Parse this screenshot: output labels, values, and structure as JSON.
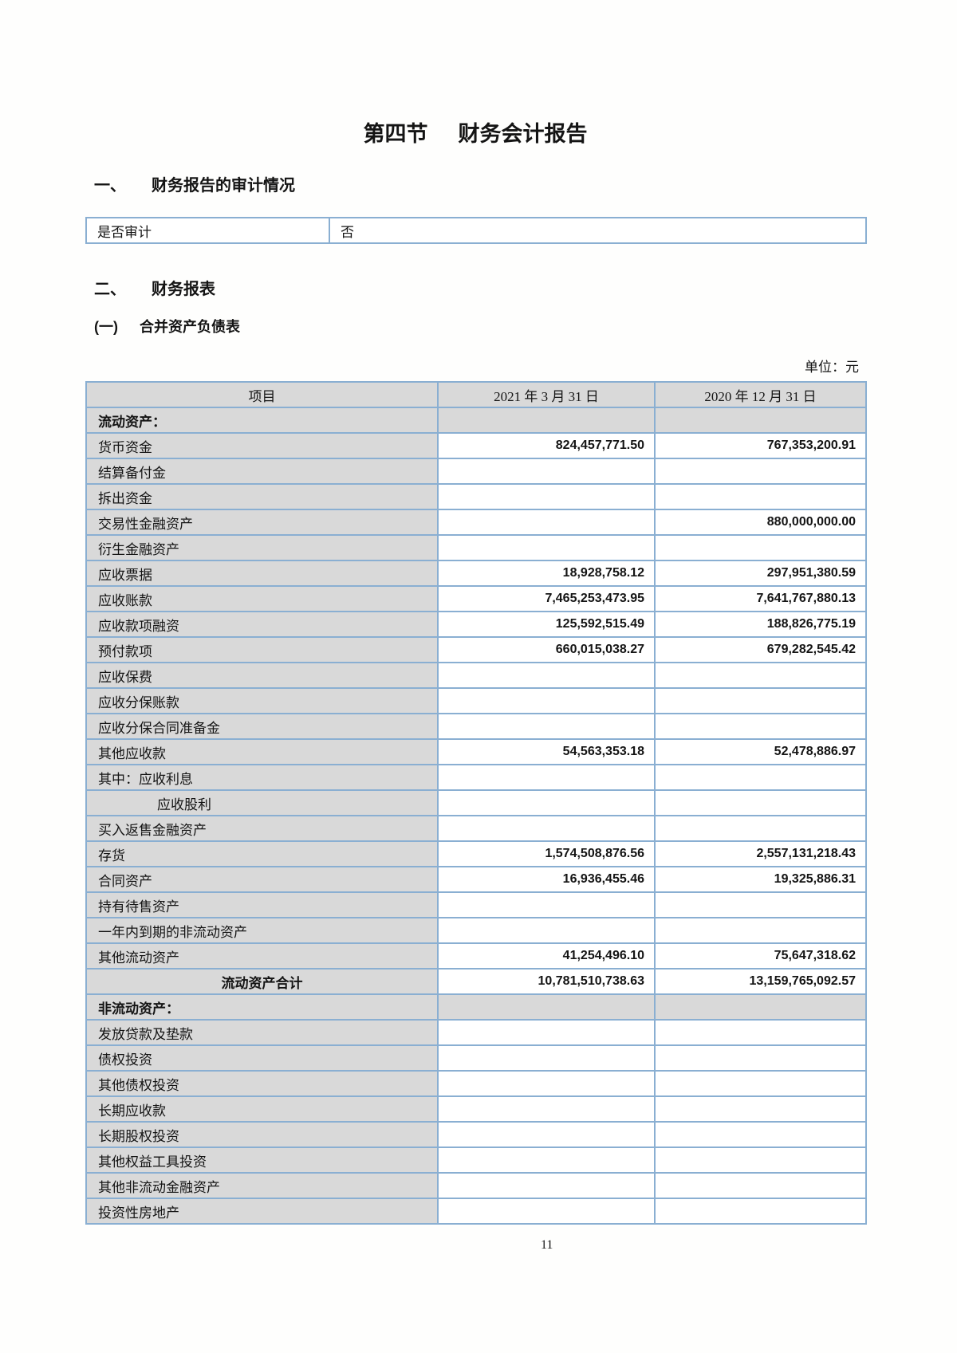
{
  "document": {
    "title": {
      "part1": "第四节",
      "part2": "财务会计报告"
    },
    "page_number": "11"
  },
  "audit_section": {
    "index": "一、",
    "heading": "财务报告的审计情况",
    "question": "是否审计",
    "answer": "否"
  },
  "statements_section": {
    "index": "二、",
    "heading": "财务报表",
    "sub_index": "(一)",
    "subheading": "合并资产负债表",
    "unit_label": "单位：元"
  },
  "balance_sheet": {
    "columns": [
      "项目",
      "2021 年 3 月 31 日",
      "2020 年 12 月 31 日"
    ],
    "rows": [
      {
        "type": "section",
        "label": "流动资产：",
        "v1": "",
        "v2": ""
      },
      {
        "type": "item",
        "label": "货币资金",
        "v1": "824,457,771.50",
        "v2": "767,353,200.91"
      },
      {
        "type": "item",
        "label": "结算备付金",
        "v1": "",
        "v2": ""
      },
      {
        "type": "item",
        "label": "拆出资金",
        "v1": "",
        "v2": ""
      },
      {
        "type": "item",
        "label": "交易性金融资产",
        "v1": "",
        "v2": "880,000,000.00"
      },
      {
        "type": "item",
        "label": "衍生金融资产",
        "v1": "",
        "v2": ""
      },
      {
        "type": "item",
        "label": "应收票据",
        "v1": "18,928,758.12",
        "v2": "297,951,380.59"
      },
      {
        "type": "item",
        "label": "应收账款",
        "v1": "7,465,253,473.95",
        "v2": "7,641,767,880.13"
      },
      {
        "type": "item",
        "label": "应收款项融资",
        "v1": "125,592,515.49",
        "v2": "188,826,775.19"
      },
      {
        "type": "item",
        "label": "预付款项",
        "v1": "660,015,038.27",
        "v2": "679,282,545.42"
      },
      {
        "type": "item",
        "label": "应收保费",
        "v1": "",
        "v2": ""
      },
      {
        "type": "item",
        "label": "应收分保账款",
        "v1": "",
        "v2": ""
      },
      {
        "type": "item",
        "label": "应收分保合同准备金",
        "v1": "",
        "v2": ""
      },
      {
        "type": "item",
        "label": "其他应收款",
        "v1": "54,563,353.18",
        "v2": "52,478,886.97"
      },
      {
        "type": "item",
        "label": "其中：应收利息",
        "v1": "",
        "v2": ""
      },
      {
        "type": "indent",
        "label": "应收股利",
        "v1": "",
        "v2": ""
      },
      {
        "type": "item",
        "label": "买入返售金融资产",
        "v1": "",
        "v2": ""
      },
      {
        "type": "item",
        "label": "存货",
        "v1": "1,574,508,876.56",
        "v2": "2,557,131,218.43"
      },
      {
        "type": "item",
        "label": "合同资产",
        "v1": "16,936,455.46",
        "v2": "19,325,886.31"
      },
      {
        "type": "item",
        "label": "持有待售资产",
        "v1": "",
        "v2": ""
      },
      {
        "type": "item",
        "label": "一年内到期的非流动资产",
        "v1": "",
        "v2": ""
      },
      {
        "type": "item",
        "label": "其他流动资产",
        "v1": "41,254,496.10",
        "v2": "75,647,318.62"
      },
      {
        "type": "total",
        "label": "流动资产合计",
        "v1": "10,781,510,738.63",
        "v2": "13,159,765,092.57"
      },
      {
        "type": "section",
        "label": "非流动资产：",
        "v1": "",
        "v2": ""
      },
      {
        "type": "item",
        "label": "发放贷款及垫款",
        "v1": "",
        "v2": ""
      },
      {
        "type": "item",
        "label": "债权投资",
        "v1": "",
        "v2": ""
      },
      {
        "type": "item",
        "label": "其他债权投资",
        "v1": "",
        "v2": ""
      },
      {
        "type": "item",
        "label": "长期应收款",
        "v1": "",
        "v2": ""
      },
      {
        "type": "item",
        "label": "长期股权投资",
        "v1": "",
        "v2": ""
      },
      {
        "type": "item",
        "label": "其他权益工具投资",
        "v1": "",
        "v2": ""
      },
      {
        "type": "item",
        "label": "其他非流动金融资产",
        "v1": "",
        "v2": ""
      },
      {
        "type": "item",
        "label": "投资性房地产",
        "v1": "",
        "v2": ""
      }
    ]
  },
  "colors": {
    "border_blue": "#8aafd2",
    "cell_gray": "#d9d9d9",
    "text_dark": "#141414"
  }
}
